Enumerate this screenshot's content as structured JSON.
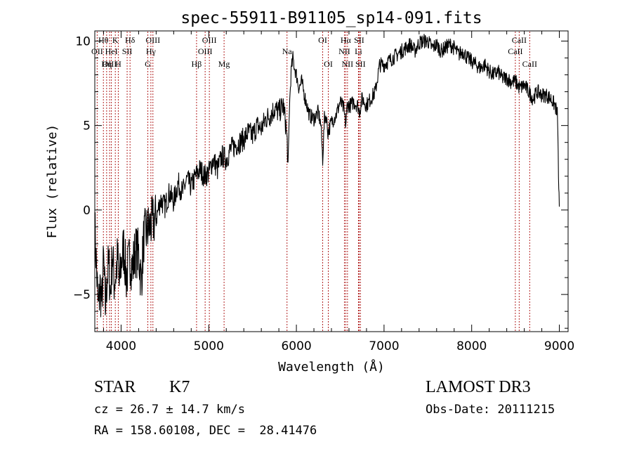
{
  "chart_data": {
    "type": "line",
    "title": "spec-55911-B91105_sp14-091.fits",
    "xlabel": "Wavelength (Å)",
    "ylabel": "Flux (relative)",
    "xlim": [
      3700,
      9100
    ],
    "ylim": [
      -7.2,
      10.6
    ],
    "xticks": [
      4000,
      5000,
      6000,
      7000,
      8000,
      9000
    ],
    "yticks": [
      -5,
      0,
      5,
      10
    ],
    "xtick_labels": [
      "4000",
      "5000",
      "6000",
      "7000",
      "8000",
      "9000"
    ],
    "ytick_labels": [
      "−5",
      "0",
      "5",
      "10"
    ],
    "grid": false,
    "series": [
      {
        "values_note": "",
        "x": [
          3700,
          3720,
          3740,
          3760,
          3780,
          3800,
          3820,
          3840,
          3860,
          3880,
          3900,
          3920,
          3940,
          3960,
          3980,
          4000,
          4030,
          4060,
          4100,
          4130,
          4160,
          4200,
          4230,
          4260,
          4300,
          4350,
          4400,
          4450,
          4500,
          4550,
          4600,
          4650,
          4700,
          4750,
          4800,
          4850,
          4900,
          4950,
          5000,
          5050,
          5100,
          5150,
          5200,
          5250,
          5300,
          5350,
          5400,
          5450,
          5500,
          5550,
          5600,
          5650,
          5700,
          5750,
          5800,
          5850,
          5880,
          5895,
          5905,
          5920,
          5940,
          5960,
          5980,
          6000,
          6030,
          6060,
          6100,
          6150,
          6200,
          6250,
          6280,
          6300,
          6320,
          6340,
          6360,
          6400,
          6450,
          6500,
          6540,
          6563,
          6580,
          6620,
          6650,
          6700,
          6720,
          6750,
          6800,
          6850,
          6900,
          6950,
          7000,
          7050,
          7100,
          7150,
          7200,
          7250,
          7300,
          7350,
          7400,
          7450,
          7500,
          7550,
          7600,
          7650,
          7700,
          7750,
          7800,
          7850,
          7900,
          7950,
          8000,
          8050,
          8100,
          8150,
          8200,
          8250,
          8300,
          8350,
          8400,
          8450,
          8500,
          8550,
          8600,
          8650,
          8700,
          8750,
          8800,
          8850,
          8900,
          8950,
          8980,
          8990,
          9000
        ],
        "y": [
          -1.0,
          -3.5,
          -6.0,
          -4.5,
          -5.5,
          -3.0,
          -5.8,
          -4.0,
          -3.2,
          -5.0,
          -2.5,
          -4.2,
          -3.8,
          -2.8,
          -4.5,
          -3.2,
          -2.2,
          -4.0,
          -2.8,
          -3.5,
          -2.4,
          -2.6,
          -4.2,
          -1.6,
          -1.2,
          -0.8,
          -0.5,
          0.6,
          0.2,
          1.0,
          0.5,
          1.6,
          1.0,
          1.8,
          1.4,
          2.0,
          2.4,
          2.0,
          2.2,
          3.0,
          2.4,
          3.2,
          3.0,
          3.6,
          3.8,
          4.0,
          4.2,
          4.6,
          4.4,
          5.0,
          4.8,
          5.4,
          5.6,
          6.0,
          5.8,
          6.2,
          5.0,
          4.0,
          2.4,
          6.0,
          8.2,
          9.0,
          8.4,
          8.0,
          7.2,
          7.6,
          6.6,
          5.6,
          5.4,
          5.8,
          5.0,
          3.0,
          5.4,
          5.6,
          4.6,
          5.2,
          5.6,
          6.4,
          6.0,
          5.0,
          6.2,
          6.2,
          6.4,
          6.2,
          5.8,
          6.6,
          6.2,
          6.6,
          7.0,
          8.6,
          8.6,
          8.8,
          9.0,
          9.2,
          9.4,
          9.6,
          9.8,
          9.4,
          9.9,
          10.0,
          10.0,
          9.6,
          9.8,
          9.4,
          9.6,
          9.8,
          9.6,
          9.2,
          9.4,
          9.0,
          8.8,
          8.6,
          8.4,
          8.6,
          8.2,
          8.0,
          8.2,
          7.8,
          7.8,
          7.6,
          7.6,
          7.2,
          7.4,
          7.0,
          6.6,
          7.0,
          6.8,
          6.8,
          6.6,
          6.2,
          5.6,
          2.0,
          0.2
        ]
      }
    ],
    "annotations": [
      {
        "label": "Hθ",
        "x": 3798,
        "row": 1
      },
      {
        "label": "OII",
        "x": 3727,
        "row": 2
      },
      {
        "label": "OIII",
        "x": 3869,
        "row": 3
      },
      {
        "label": "Hη",
        "x": 3835,
        "row": 3
      },
      {
        "label": "K",
        "x": 3934,
        "row": 1
      },
      {
        "label": "HeI",
        "x": 3889,
        "row": 2
      },
      {
        "label": "H",
        "x": 3968,
        "row": 3
      },
      {
        "label": "SII",
        "x": 4069,
        "row": 2
      },
      {
        "label": "Hδ",
        "x": 4102,
        "row": 1
      },
      {
        "label": "OIII",
        "x": 4363,
        "row": 1
      },
      {
        "label": "Hγ",
        "x": 4340,
        "row": 2
      },
      {
        "label": "G",
        "x": 4305,
        "row": 3
      },
      {
        "label": "OIII",
        "x": 5007,
        "row": 1
      },
      {
        "label": "OIII",
        "x": 4959,
        "row": 2
      },
      {
        "label": "Hβ",
        "x": 4861,
        "row": 3
      },
      {
        "label": "Mg",
        "x": 5175,
        "row": 3
      },
      {
        "label": "Na",
        "x": 5893,
        "row": 2
      },
      {
        "label": "OI",
        "x": 6300,
        "row": 1
      },
      {
        "label": "OI",
        "x": 6364,
        "row": 3
      },
      {
        "label": "Hα",
        "x": 6563,
        "row": 1
      },
      {
        "label": "SII",
        "x": 6716,
        "row": 1
      },
      {
        "label": "NII",
        "x": 6548,
        "row": 2
      },
      {
        "label": "Li",
        "x": 6708,
        "row": 2
      },
      {
        "label": "NII",
        "x": 6583,
        "row": 3
      },
      {
        "label": "SII",
        "x": 6731,
        "row": 3
      },
      {
        "label": "CaII",
        "x": 8542,
        "row": 1
      },
      {
        "label": "CaII",
        "x": 8498,
        "row": 2
      },
      {
        "label": "CaII",
        "x": 8662,
        "row": 3
      }
    ],
    "line_color": "#000000",
    "marker_color": "#b22222"
  },
  "footer": {
    "class_label": "STAR",
    "subclass_label": "K7",
    "survey": "LAMOST DR3",
    "cz": "cz = 26.7 ± 14.7 km/s",
    "obs_date": "Obs-Date: 20111215",
    "coords": "RA = 158.60108, DEC =  28.41476"
  }
}
